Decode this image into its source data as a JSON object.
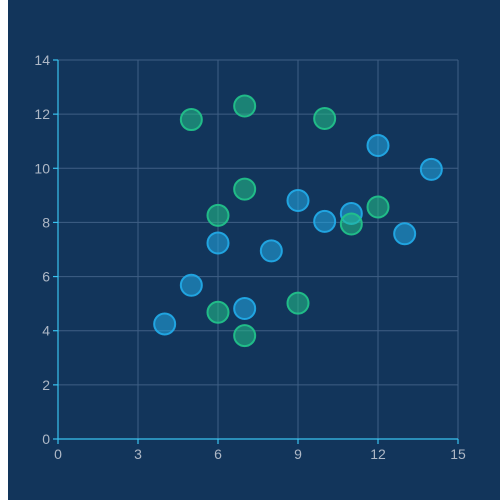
{
  "chart_data": {
    "type": "scatter",
    "title": "",
    "xlabel": "",
    "ylabel": "",
    "xlim": [
      0,
      15
    ],
    "ylim": [
      0,
      14
    ],
    "x_ticks": [
      0,
      3,
      6,
      9,
      12,
      15
    ],
    "y_ticks": [
      0,
      2,
      4,
      6,
      8,
      10,
      12,
      14
    ],
    "grid": true,
    "colors": {
      "background": "#12355b",
      "axis": "#39c3f0",
      "grid": "#3f5f85",
      "tick_text": "#aeb8c6"
    },
    "series": [
      {
        "color": "#22a9e6",
        "points": [
          {
            "x": 4,
            "y": 4.25
          },
          {
            "x": 5,
            "y": 5.68
          },
          {
            "x": 6,
            "y": 7.24
          },
          {
            "x": 7,
            "y": 4.82
          },
          {
            "x": 8,
            "y": 6.95
          },
          {
            "x": 9,
            "y": 8.81
          },
          {
            "x": 10,
            "y": 8.04
          },
          {
            "x": 11,
            "y": 8.33
          },
          {
            "x": 12,
            "y": 10.84
          },
          {
            "x": 13,
            "y": 7.58
          },
          {
            "x": 14,
            "y": 9.96
          }
        ]
      },
      {
        "color": "#22c18a",
        "points": [
          {
            "x": 5,
            "y": 11.8
          },
          {
            "x": 6,
            "y": 8.26
          },
          {
            "x": 6,
            "y": 4.68
          },
          {
            "x": 7,
            "y": 12.3
          },
          {
            "x": 7,
            "y": 9.23
          },
          {
            "x": 7,
            "y": 3.82
          },
          {
            "x": 9,
            "y": 5.02
          },
          {
            "x": 10,
            "y": 11.84
          },
          {
            "x": 11,
            "y": 7.94
          },
          {
            "x": 12,
            "y": 8.57
          }
        ]
      }
    ]
  }
}
